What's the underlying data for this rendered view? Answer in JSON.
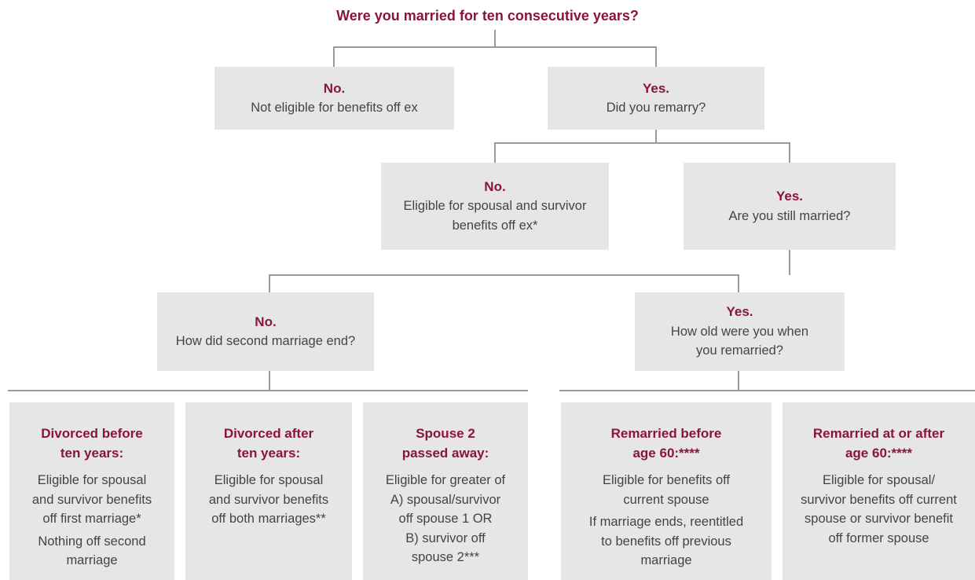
{
  "title": "Were you married for ten consecutive years?",
  "nodes": [
    {
      "heading": [
        "No."
      ],
      "text": [
        "Not eligible for benefits off ex"
      ]
    },
    {
      "heading": [
        "Yes."
      ],
      "text": [
        "Did you remarry?"
      ]
    },
    {
      "heading": [
        "No."
      ],
      "text": [
        "Eligible for spousal and survivor",
        "benefits off ex*"
      ]
    },
    {
      "heading": [
        "Yes."
      ],
      "text": [
        "Are you still married?"
      ]
    },
    {
      "heading": [
        "No."
      ],
      "text": [
        "How did second marriage end?"
      ]
    },
    {
      "heading": [
        "Yes."
      ],
      "text": [
        "How old were you when",
        "you remarried?"
      ]
    },
    {
      "heading": [
        "Divorced before",
        "ten years:"
      ],
      "text": [
        "Eligible for spousal",
        "and survivor benefits",
        "off first marriage*",
        "Nothing off second",
        "marriage"
      ]
    },
    {
      "heading": [
        "Divorced after",
        "ten years:"
      ],
      "text": [
        "Eligible for spousal",
        "and survivor benefits",
        "off both marriages**"
      ]
    },
    {
      "heading": [
        "Spouse 2",
        "passed away:"
      ],
      "text": [
        "Eligible for greater of",
        "A) spousal/survivor",
        "off spouse 1 OR",
        "B) survivor off",
        "spouse 2***"
      ]
    },
    {
      "heading": [
        "Remarried before",
        "age 60:****"
      ],
      "text": [
        "Eligible for benefits off",
        "current spouse",
        "If marriage ends, reentitled",
        "to benefits off previous",
        "marriage"
      ]
    },
    {
      "heading": [
        "Remarried at or after",
        "age 60:****"
      ],
      "text": [
        "Eligible for spousal/",
        "survivor benefits off current",
        "spouse or survivor benefit",
        "off former spouse"
      ]
    }
  ]
}
